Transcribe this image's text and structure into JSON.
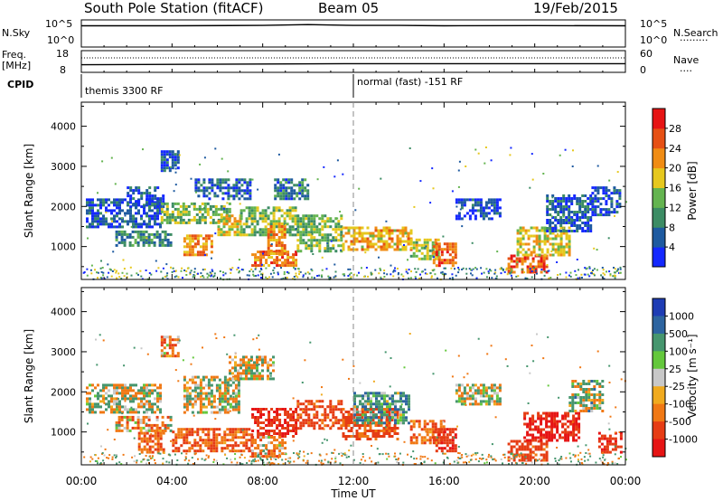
{
  "header": {
    "station": "South Pole Station (fitACF)",
    "beam": "Beam 05",
    "date": "19/Feb/2015"
  },
  "noise_panel": {
    "left_label": "N.Sky",
    "right_label": "N.Search",
    "left_ticks": [
      "10^5",
      "10^0"
    ],
    "right_ticks": [
      "10^5",
      "10^0"
    ]
  },
  "freq_panel": {
    "label_line1": "Freq.",
    "label_line2": "[MHz]",
    "left_ticks": [
      "18",
      "8"
    ],
    "right_label": "Nave",
    "right_ticks": [
      "60",
      "0"
    ]
  },
  "cpid": {
    "label": "CPID",
    "segments": [
      {
        "start_h": 0,
        "text": "themis 3300 RF"
      },
      {
        "start_h": 12,
        "text": "normal (fast) -151 RF"
      }
    ]
  },
  "panels": {
    "power": {
      "ylabel": "Slant Range [km]"
    },
    "velocity": {
      "ylabel": "Slant Range [km]"
    }
  },
  "colorbars": {
    "power": {
      "label": "Power [dB]",
      "ticks": [
        "4",
        "8",
        "12",
        "16",
        "20",
        "24",
        "28"
      ],
      "colors": [
        "#1428ff",
        "#1e5aa0",
        "#3c8c64",
        "#64b450",
        "#e6c81e",
        "#f08c14",
        "#e65014",
        "#e61414"
      ]
    },
    "velocity": {
      "label": "Velocity [m s⁻¹]",
      "ticks": [
        "1000",
        "500",
        "100",
        "25",
        "-25",
        "-100",
        "-500",
        "-1000"
      ],
      "colors": [
        "#1e3cb4",
        "#2d64a0",
        "#46966e",
        "#64c83c",
        "#c8c8c8",
        "#f0aa1e",
        "#f07814",
        "#e63c14",
        "#e61414"
      ]
    }
  },
  "chart_data": [
    {
      "type": "line",
      "name": "noise",
      "x_range_hours": [
        0,
        24
      ],
      "log_scale": true,
      "series": [
        {
          "name": "N.Sky",
          "style": "solid",
          "x": [
            0,
            4,
            8,
            10,
            12,
            14,
            16,
            20,
            24
          ],
          "y": [
            50000,
            50000,
            60000,
            90000,
            60000,
            60000,
            50000,
            55000,
            50000
          ]
        },
        {
          "name": "N.Search",
          "style": "dotted",
          "x": [
            0,
            24
          ],
          "y": [
            1,
            1
          ]
        }
      ]
    },
    {
      "type": "line",
      "name": "frequency",
      "x_range_hours": [
        0,
        24
      ],
      "yrange_left": [
        8,
        18
      ],
      "yrange_right": [
        0,
        60
      ],
      "series": [
        {
          "name": "Freq.",
          "style": "solid",
          "x": [
            0,
            12,
            24
          ],
          "y": [
            11.5,
            12,
            12
          ]
        },
        {
          "name": "Nave",
          "style": "dotted",
          "x": [
            0,
            24
          ],
          "y": [
            40,
            40
          ]
        }
      ]
    },
    {
      "type": "heatmap",
      "name": "power",
      "xlabel": "Time UT",
      "ylabel": "Slant Range [km]",
      "x_range_hours": [
        0,
        24
      ],
      "xticks": [
        "00:00",
        "04:00",
        "08:00",
        "12:00",
        "16:00",
        "20:00",
        "00:00"
      ],
      "ylim": [
        180,
        4600
      ],
      "yticks": [
        1000,
        2000,
        3000,
        4000
      ],
      "value_range": [
        0,
        30
      ],
      "regions": [
        {
          "t": [
            0.2,
            3.5
          ],
          "r": [
            1500,
            2200
          ],
          "v": 5
        },
        {
          "t": [
            1.5,
            4.0
          ],
          "r": [
            1050,
            1400
          ],
          "v": 9
        },
        {
          "t": [
            2.0,
            3.6
          ],
          "r": [
            2000,
            2500
          ],
          "v": 5
        },
        {
          "t": [
            3.5,
            4.3
          ],
          "r": [
            2900,
            3400
          ],
          "v": 5
        },
        {
          "t": [
            3.5,
            6.5
          ],
          "r": [
            1600,
            2100
          ],
          "v": 14
        },
        {
          "t": [
            4.5,
            5.8
          ],
          "r": [
            800,
            1300
          ],
          "v": 22
        },
        {
          "t": [
            5.0,
            7.5
          ],
          "r": [
            2200,
            2700
          ],
          "v": 6
        },
        {
          "t": [
            6.0,
            7.0
          ],
          "r": [
            1300,
            1800
          ],
          "v": 18
        },
        {
          "t": [
            7.0,
            9.5
          ],
          "r": [
            1300,
            2000
          ],
          "v": 14
        },
        {
          "t": [
            7.5,
            9.5
          ],
          "r": [
            500,
            900
          ],
          "v": 24
        },
        {
          "t": [
            8.2,
            9.0
          ],
          "r": [
            800,
            1600
          ],
          "v": 22
        },
        {
          "t": [
            8.5,
            10.0
          ],
          "r": [
            2200,
            2700
          ],
          "v": 8
        },
        {
          "t": [
            9.5,
            11.5
          ],
          "r": [
            900,
            1800
          ],
          "v": 14
        },
        {
          "t": [
            11.5,
            14.5
          ],
          "r": [
            900,
            1500
          ],
          "v": 20
        },
        {
          "t": [
            14.5,
            15.8
          ],
          "r": [
            700,
            1200
          ],
          "v": 16
        },
        {
          "t": [
            15.5,
            16.5
          ],
          "r": [
            500,
            1100
          ],
          "v": 25
        },
        {
          "t": [
            16.5,
            18.5
          ],
          "r": [
            1700,
            2200
          ],
          "v": 4
        },
        {
          "t": [
            18.8,
            20.5
          ],
          "r": [
            350,
            800
          ],
          "v": 26
        },
        {
          "t": [
            19.2,
            21.5
          ],
          "r": [
            800,
            1500
          ],
          "v": 18
        },
        {
          "t": [
            20.5,
            22.5
          ],
          "r": [
            1400,
            2300
          ],
          "v": 6
        },
        {
          "t": [
            22.5,
            23.8
          ],
          "r": [
            1800,
            2500
          ],
          "v": 5
        }
      ]
    },
    {
      "type": "heatmap",
      "name": "velocity",
      "xlabel": "Time UT",
      "ylabel": "Slant Range [km]",
      "x_range_hours": [
        0,
        24
      ],
      "xticks": [
        "00:00",
        "04:00",
        "08:00",
        "12:00",
        "16:00",
        "20:00",
        "00:00"
      ],
      "ylim": [
        180,
        4600
      ],
      "yticks": [
        1000,
        2000,
        3000,
        4000
      ],
      "value_range": [
        -1000,
        1000
      ],
      "regions": [
        {
          "t": [
            0.2,
            3.5
          ],
          "r": [
            1500,
            2200
          ],
          "v": 0
        },
        {
          "t": [
            1.5,
            4.0
          ],
          "r": [
            1000,
            1400
          ],
          "v": -150
        },
        {
          "t": [
            2.5,
            3.6
          ],
          "r": [
            500,
            1000
          ],
          "v": -300
        },
        {
          "t": [
            3.5,
            4.3
          ],
          "r": [
            2900,
            3400
          ],
          "v": -200
        },
        {
          "t": [
            4.0,
            7.5
          ],
          "r": [
            500,
            1100
          ],
          "v": -300
        },
        {
          "t": [
            4.5,
            7.0
          ],
          "r": [
            1500,
            2400
          ],
          "v": 0
        },
        {
          "t": [
            6.5,
            8.5
          ],
          "r": [
            2300,
            2900
          ],
          "v": 0
        },
        {
          "t": [
            7.5,
            9.5
          ],
          "r": [
            900,
            1600
          ],
          "v": -700
        },
        {
          "t": [
            7.5,
            9.0
          ],
          "r": [
            400,
            900
          ],
          "v": -150
        },
        {
          "t": [
            9.5,
            11.5
          ],
          "r": [
            1100,
            1800
          ],
          "v": -450
        },
        {
          "t": [
            11.5,
            14.0
          ],
          "r": [
            800,
            1600
          ],
          "v": -400
        },
        {
          "t": [
            12.0,
            14.5
          ],
          "r": [
            1200,
            2000
          ],
          "v": 200
        },
        {
          "t": [
            14.5,
            16.0
          ],
          "r": [
            700,
            1300
          ],
          "v": -300
        },
        {
          "t": [
            15.5,
            16.5
          ],
          "r": [
            500,
            1100
          ],
          "v": -600
        },
        {
          "t": [
            16.5,
            18.5
          ],
          "r": [
            1700,
            2200
          ],
          "v": 0
        },
        {
          "t": [
            18.8,
            20.5
          ],
          "r": [
            300,
            800
          ],
          "v": -500
        },
        {
          "t": [
            19.5,
            22.0
          ],
          "r": [
            800,
            1500
          ],
          "v": -800
        },
        {
          "t": [
            21.5,
            23.0
          ],
          "r": [
            1500,
            2300
          ],
          "v": 80
        },
        {
          "t": [
            22.8,
            23.8
          ],
          "r": [
            500,
            1000
          ],
          "v": -700
        }
      ]
    }
  ]
}
